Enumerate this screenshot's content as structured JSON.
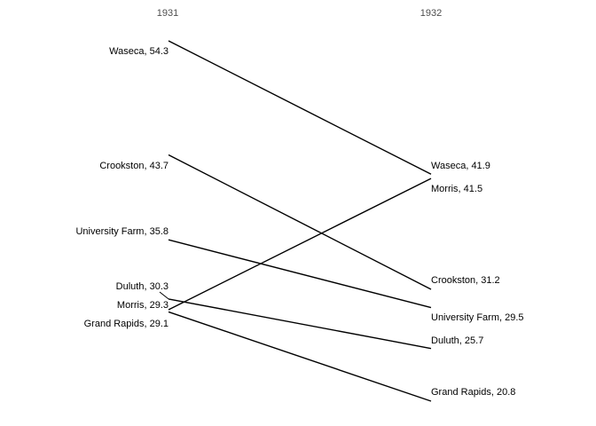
{
  "chart_data": {
    "type": "slope",
    "categories": [
      "1931",
      "1932"
    ],
    "series": [
      {
        "name": "Waseca",
        "values": [
          54.3,
          41.9
        ]
      },
      {
        "name": "Crookston",
        "values": [
          43.7,
          31.2
        ]
      },
      {
        "name": "University Farm",
        "values": [
          35.8,
          29.5
        ]
      },
      {
        "name": "Duluth",
        "values": [
          30.3,
          25.7
        ]
      },
      {
        "name": "Morris",
        "values": [
          29.3,
          41.5
        ]
      },
      {
        "name": "Grand Rapids",
        "values": [
          29.1,
          20.8
        ]
      }
    ],
    "left_labels": [
      "Waseca, 54.3",
      "Crookston, 43.7",
      "University Farm, 35.8",
      "Duluth, 30.3",
      "Morris, 29.3",
      "Grand Rapids, 29.1"
    ],
    "right_labels": [
      "Waseca, 41.9",
      "Crookston, 31.2",
      "University Farm, 29.5",
      "Duluth, 25.7",
      "Morris, 41.5",
      "Grand Rapids, 20.8"
    ],
    "line_color": "#000000",
    "grid": false,
    "legend": "none"
  }
}
